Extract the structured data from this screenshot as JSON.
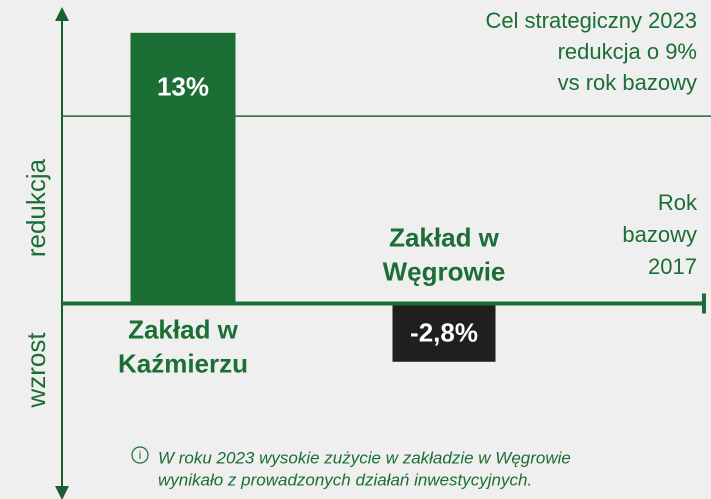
{
  "chart_data": {
    "type": "bar",
    "categories": [
      "Zakład w Kaźmierzu",
      "Zakład w Węgrowie"
    ],
    "values": [
      13,
      -2.8
    ],
    "value_labels": [
      "13%",
      "-2,8%"
    ],
    "colors": [
      "#1b6e34",
      "#1f1f1f"
    ],
    "ylim": [
      -9.2,
      14
    ],
    "axis_labels": {
      "positive": "redukcja",
      "negative": "wzrost"
    },
    "target": {
      "value": 9,
      "label_lines": [
        "Cel strategiczny 2023",
        "redukcja o 9%",
        "vs rok bazowy"
      ]
    },
    "baseline_label_lines": [
      "Rok",
      "bazowy",
      "2017"
    ],
    "note_lines": [
      "W roku 2023 wysokie zużycie w zakładzie w Węgrowie",
      "wynikało z prowadzonych działań inwestycyjnych."
    ]
  }
}
